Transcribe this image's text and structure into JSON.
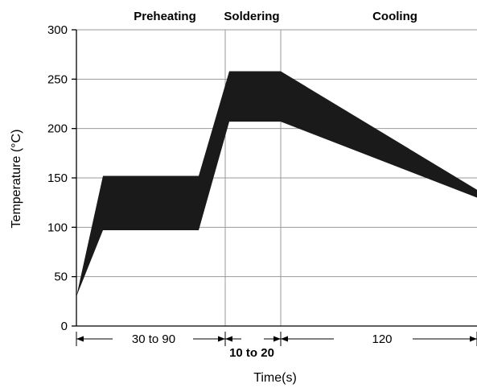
{
  "chart_data": {
    "type": "area",
    "title": "",
    "xlabel": "Time(s)",
    "ylabel": "Temperature (°C)",
    "ylim": [
      0,
      300
    ],
    "yticks": [
      0,
      50,
      100,
      150,
      200,
      250,
      300
    ],
    "grid": true,
    "phases": [
      "Preheating",
      "Soldering",
      "Cooling"
    ],
    "durations": [
      {
        "label": "30 to 90",
        "bold": false
      },
      {
        "label": "10 to 20",
        "bold": true
      },
      {
        "label": "120",
        "bold": false
      }
    ],
    "series": [
      {
        "upper": [
          30,
          152,
          152,
          258,
          258,
          138
        ],
        "lower": [
          30,
          97,
          97,
          207,
          207,
          130
        ]
      }
    ],
    "fill_color": "#1a1a1a"
  }
}
